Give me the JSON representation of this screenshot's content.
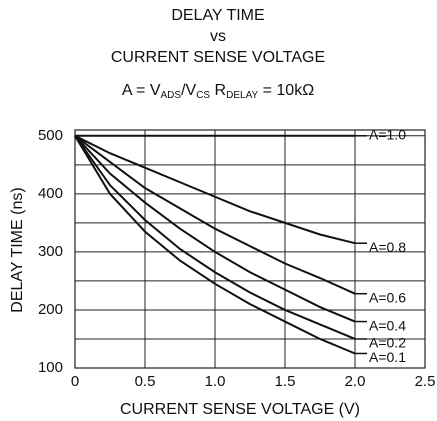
{
  "chart_data": {
    "type": "line",
    "title_lines": [
      "DELAY TIME",
      "vs",
      "CURRENT SENSE VOLTAGE"
    ],
    "subtitle_parts": [
      "A = V",
      "ADS",
      "/V",
      "CS",
      " R",
      "DELAY",
      " = 10kΩ"
    ],
    "x_label": "CURRENT SENSE VOLTAGE (V)",
    "y_label": "DELAY TIME (ns)",
    "x": [
      0,
      0.25,
      0.5,
      0.75,
      1.0,
      1.25,
      1.5,
      1.75,
      2.0
    ],
    "series": [
      {
        "name": "A=1.0",
        "color": "#111111",
        "values": [
          500,
          500,
          500,
          500,
          500,
          500,
          500,
          500,
          500
        ]
      },
      {
        "name": "A=0.8",
        "color": "#111111",
        "values": [
          500,
          470,
          445,
          420,
          395,
          370,
          350,
          330,
          315
        ]
      },
      {
        "name": "A=0.6",
        "color": "#111111",
        "values": [
          500,
          455,
          410,
          375,
          340,
          310,
          280,
          255,
          228
        ]
      },
      {
        "name": "A=0.4",
        "color": "#111111",
        "values": [
          500,
          435,
          385,
          340,
          300,
          265,
          235,
          205,
          180
        ]
      },
      {
        "name": "A=0.2",
        "color": "#111111",
        "values": [
          500,
          415,
          355,
          305,
          265,
          230,
          200,
          175,
          150
        ]
      },
      {
        "name": "A=0.1",
        "color": "#111111",
        "values": [
          500,
          400,
          335,
          285,
          245,
          210,
          180,
          150,
          125
        ]
      }
    ],
    "xlim": [
      0,
      2.5
    ],
    "xticks": [
      0,
      0.5,
      {
        "value": 1,
        "label": "1.0"
      },
      1.5,
      {
        "value": 2,
        "label": "2.0"
      },
      2.5
    ],
    "ylim": [
      100,
      510
    ],
    "yticks": [
      100,
      200,
      300,
      400,
      500
    ],
    "ygrid": [
      150,
      200,
      250,
      300,
      350,
      400,
      450,
      500
    ],
    "grid": true
  }
}
